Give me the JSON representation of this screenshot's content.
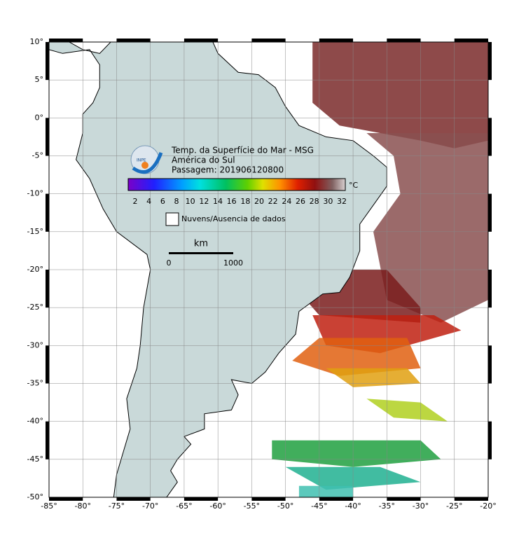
{
  "map": {
    "title_lines": [
      "Temp. da Superfície do Mar - MSG",
      "América do Sul",
      "Passagem: 201906120800"
    ],
    "logo_text": "INPE",
    "colorbar": {
      "ticks": [
        "2",
        "4",
        "6",
        "8",
        "10",
        "12",
        "14",
        "16",
        "18",
        "20",
        "22",
        "24",
        "26",
        "28",
        "30",
        "32"
      ],
      "unit": "°C"
    },
    "legend": "Nuvens/Ausencia de dados",
    "scale": {
      "unit": "km",
      "start": "0",
      "end": "1000"
    },
    "lon_labels": [
      "-85°",
      "-80°",
      "-75°",
      "-70°",
      "-65°",
      "-60°",
      "-55°",
      "-50°",
      "-45°",
      "-40°",
      "-35°",
      "-30°",
      "-25°",
      "-20°"
    ],
    "lat_labels": [
      "10°",
      "5°",
      "0°",
      "-5°",
      "-10°",
      "-15°",
      "-20°",
      "-25°",
      "-30°",
      "-35°",
      "-40°",
      "-45°",
      "-50°"
    ]
  }
}
